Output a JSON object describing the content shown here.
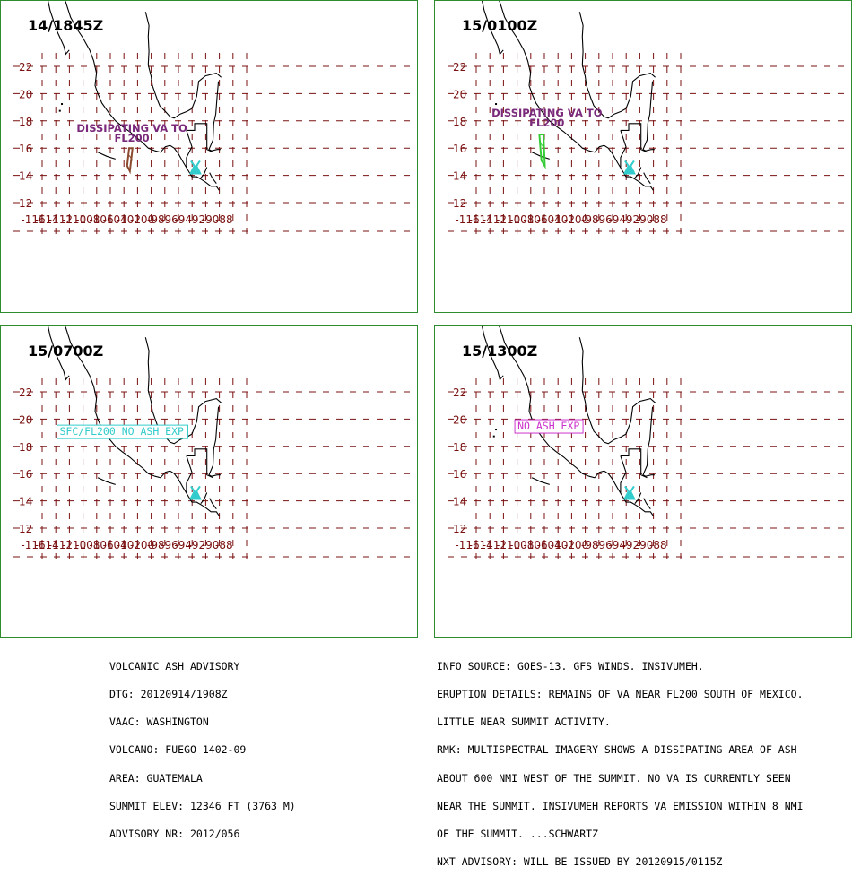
{
  "panels": [
    {
      "time": "14/1845Z",
      "annotation": {
        "lines": [
          "DISSIPATING VA TO",
          "FL200"
        ],
        "color": "#7a2a7a",
        "boxed": false,
        "lon": -100.2,
        "lat": 17.2
      },
      "ash_polygon": {
        "color": "#8b4a2f",
        "points": [
          [
            -100.6,
            16.0
          ],
          [
            -100.1,
            16.0
          ],
          [
            -100.5,
            14.3
          ],
          [
            -100.9,
            14.7
          ]
        ]
      }
    },
    {
      "time": "15/0100Z",
      "annotation": {
        "lines": [
          "DISSIPATING VA TO",
          "FL200"
        ],
        "color": "#7a2a7a",
        "boxed": false,
        "lon": -103.0,
        "lat": 18.3
      },
      "ash_polygon": {
        "color": "#33cc33",
        "points": [
          [
            -104.1,
            17.0
          ],
          [
            -103.5,
            17.0
          ],
          [
            -103.3,
            14.7
          ],
          [
            -103.8,
            15.1
          ]
        ]
      }
    },
    {
      "time": "15/0700Z",
      "annotation": {
        "lines": [
          "SFC/FL200 NO ASH EXP"
        ],
        "color": "#33cccc",
        "boxed": true,
        "lon": -111.2,
        "lat": 18.9
      },
      "ash_polygon": null
    },
    {
      "time": "15/1300Z",
      "annotation": {
        "lines": [
          "NO ASH EXP"
        ],
        "color": "#cc33cc",
        "boxed": true,
        "lon": -107.7,
        "lat": 19.3
      },
      "ash_polygon": null
    }
  ],
  "map": {
    "lon_labels": [
      "-116",
      "-114",
      "-112",
      "-110",
      "-108",
      "-106",
      "-104",
      "-102",
      "-100",
      "-98",
      "-96",
      "-94",
      "-92",
      "-90",
      "-88"
    ],
    "lat_labels": [
      "22",
      "20",
      "18",
      "16",
      "14",
      "12"
    ],
    "grid_color": "#7a1010",
    "volcano": {
      "lon": -90.88,
      "lat": 14.47,
      "color": "#33cccc",
      "icon": "volcano-icon"
    }
  },
  "advisory_left": [
    "VOLCANIC ASH ADVISORY",
    "DTG: 20120914/1908Z",
    "VAAC: WASHINGTON",
    "VOLCANO: FUEGO 1402-09",
    "AREA: GUATEMALA",
    "SUMMIT ELEV: 12346 FT (3763 M)",
    "ADVISORY NR: 2012/056"
  ],
  "advisory_right": [
    "INFO SOURCE: GOES-13. GFS WINDS. INSIVUMEH.",
    "ERUPTION DETAILS: REMAINS OF VA NEAR FL200 SOUTH OF MEXICO.",
    "LITTLE NEAR SUMMIT ACTIVITY.",
    "RMK: MULTISPECTRAL IMAGERY SHOWS A DISSIPATING AREA OF ASH",
    "ABOUT 600 NMI WEST OF THE SUMMIT. NO VA IS CURRENTLY SEEN",
    "NEAR THE SUMMIT. INSIVUMEH REPORTS VA EMISSION WITHIN 8 NMI",
    "OF THE SUMMIT. ...SCHWARTZ",
    "NXT ADVISORY: WILL BE ISSUED BY 20120915/0115Z"
  ]
}
